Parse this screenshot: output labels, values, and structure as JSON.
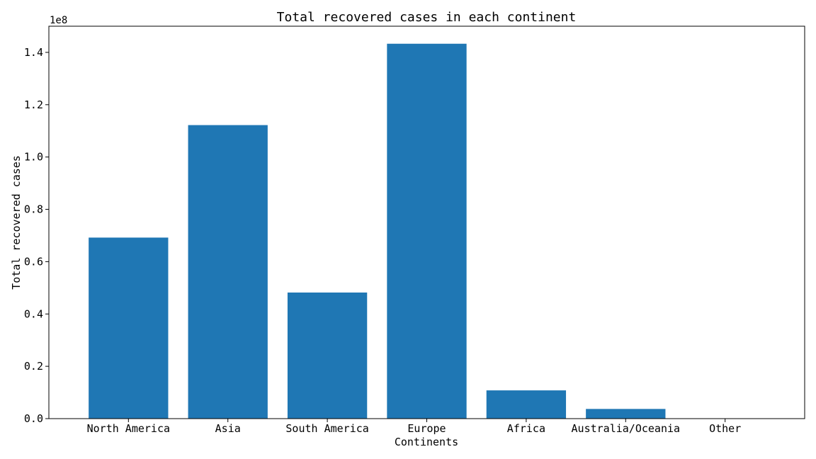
{
  "chart_data": {
    "type": "bar",
    "title": "Total recovered cases in each continent",
    "xlabel": "Continents",
    "ylabel": "Total recovered cases",
    "y_offset_label": "1e8",
    "categories": [
      "North America",
      "Asia",
      "South America",
      "Europe",
      "Africa",
      "Australia/Oceania",
      "Other"
    ],
    "values": [
      69200000,
      112200000,
      48200000,
      143300000,
      10800000,
      3700000,
      0
    ],
    "ylim": [
      0,
      150000000
    ],
    "yticks": [
      0,
      20000000,
      40000000,
      60000000,
      80000000,
      100000000,
      120000000,
      140000000
    ],
    "ytick_labels": [
      "0.0",
      "0.2",
      "0.4",
      "0.6",
      "0.8",
      "1.0",
      "1.2",
      "1.4"
    ],
    "bar_color": "#1f77b4",
    "grid": false,
    "legend": false
  }
}
